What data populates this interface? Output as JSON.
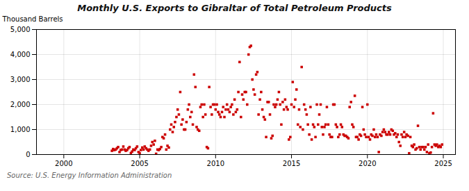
{
  "chart_data": {
    "type": "scatter",
    "title": "Monthly U.S. Exports to Gibraltar of Total Petroleum Products",
    "ylabel": "Thousand Barrels",
    "source": "Source: U.S. Energy Information Administration",
    "color": "#cc0000",
    "marker": "square",
    "grid": true,
    "xlim": [
      1998.2,
      2025.8
    ],
    "xticks": [
      2000,
      2005,
      2010,
      2015,
      2020,
      2025
    ],
    "ylim": [
      0,
      5000
    ],
    "yticks": [
      0,
      {
        "value": 1000,
        "label": "1,000"
      },
      {
        "value": 2000,
        "label": "2,000"
      },
      {
        "value": 3000,
        "label": "3,000"
      },
      {
        "value": 4000,
        "label": "4,000"
      },
      {
        "value": 5000,
        "label": "5,000"
      }
    ],
    "x": [
      2003.17,
      2003.25,
      2003.33,
      2003.42,
      2003.5,
      2003.58,
      2003.67,
      2003.75,
      2003.83,
      2003.92,
      2004.0,
      2004.08,
      2004.17,
      2004.25,
      2004.33,
      2004.42,
      2004.5,
      2004.58,
      2004.67,
      2004.75,
      2004.83,
      2004.92,
      2005.0,
      2005.08,
      2005.17,
      2005.25,
      2005.33,
      2005.42,
      2005.5,
      2005.58,
      2005.67,
      2005.75,
      2005.83,
      2005.92,
      2006.0,
      2006.08,
      2006.17,
      2006.25,
      2006.33,
      2006.42,
      2006.5,
      2006.58,
      2006.67,
      2006.75,
      2006.83,
      2006.92,
      2007.0,
      2007.08,
      2007.17,
      2007.25,
      2007.33,
      2007.42,
      2007.5,
      2007.58,
      2007.67,
      2007.75,
      2007.83,
      2007.92,
      2008.0,
      2008.08,
      2008.17,
      2008.25,
      2008.33,
      2008.42,
      2008.5,
      2008.58,
      2008.67,
      2008.75,
      2008.83,
      2008.92,
      2009.0,
      2009.08,
      2009.17,
      2009.25,
      2009.33,
      2009.42,
      2009.5,
      2009.58,
      2009.67,
      2009.75,
      2009.83,
      2009.92,
      2010.0,
      2010.08,
      2010.17,
      2010.25,
      2010.33,
      2010.42,
      2010.5,
      2010.58,
      2010.67,
      2010.75,
      2010.83,
      2010.92,
      2011.0,
      2011.08,
      2011.17,
      2011.25,
      2011.33,
      2011.42,
      2011.5,
      2011.58,
      2011.67,
      2011.75,
      2011.83,
      2011.92,
      2012.0,
      2012.08,
      2012.17,
      2012.25,
      2012.33,
      2012.42,
      2012.5,
      2012.58,
      2012.67,
      2012.75,
      2012.83,
      2012.92,
      2013.0,
      2013.08,
      2013.17,
      2013.25,
      2013.33,
      2013.42,
      2013.5,
      2013.58,
      2013.67,
      2013.75,
      2013.83,
      2013.92,
      2014.0,
      2014.08,
      2014.17,
      2014.25,
      2014.33,
      2014.42,
      2014.5,
      2014.58,
      2014.67,
      2014.75,
      2014.83,
      2014.92,
      2015.0,
      2015.08,
      2015.17,
      2015.25,
      2015.33,
      2015.42,
      2015.5,
      2015.58,
      2015.67,
      2015.75,
      2015.83,
      2015.92,
      2016.0,
      2016.08,
      2016.17,
      2016.25,
      2016.33,
      2016.42,
      2016.5,
      2016.58,
      2016.67,
      2016.75,
      2016.83,
      2016.92,
      2017.0,
      2017.08,
      2017.17,
      2017.25,
      2017.33,
      2017.42,
      2017.5,
      2017.58,
      2017.67,
      2017.75,
      2017.83,
      2017.92,
      2018.0,
      2018.08,
      2018.17,
      2018.25,
      2018.33,
      2018.42,
      2018.5,
      2018.58,
      2018.67,
      2018.75,
      2018.83,
      2018.92,
      2019.0,
      2019.08,
      2019.17,
      2019.25,
      2019.33,
      2019.42,
      2019.5,
      2019.58,
      2019.67,
      2019.75,
      2019.83,
      2019.92,
      2020.0,
      2020.08,
      2020.17,
      2020.25,
      2020.33,
      2020.42,
      2020.5,
      2020.58,
      2020.67,
      2020.75,
      2020.83,
      2020.92,
      2021.0,
      2021.08,
      2021.17,
      2021.25,
      2021.33,
      2021.42,
      2021.5,
      2021.58,
      2021.67,
      2021.75,
      2021.83,
      2021.92,
      2022.0,
      2022.08,
      2022.17,
      2022.25,
      2022.33,
      2022.42,
      2022.5,
      2022.58,
      2022.67,
      2022.75,
      2022.83,
      2022.92,
      2023.0,
      2023.08,
      2023.17,
      2023.25,
      2023.33,
      2023.42,
      2023.5,
      2023.58,
      2023.67,
      2023.75,
      2023.83,
      2023.92,
      2024.0,
      2024.08,
      2024.17,
      2024.25,
      2024.33,
      2024.42,
      2024.5,
      2024.58,
      2024.67,
      2024.75,
      2024.83,
      2024.92
    ],
    "values": [
      150,
      220,
      180,
      200,
      250,
      300,
      100,
      180,
      200,
      320,
      200,
      150,
      180,
      250,
      300,
      60,
      120,
      200,
      180,
      250,
      320,
      100,
      50,
      180,
      280,
      200,
      320,
      250,
      200,
      150,
      200,
      350,
      500,
      400,
      550,
      30,
      200,
      180,
      220,
      300,
      700,
      650,
      800,
      200,
      350,
      280,
      1000,
      1200,
      900,
      1100,
      1300,
      1500,
      1800,
      1600,
      2500,
      1200,
      1400,
      1000,
      1000,
      1300,
      1800,
      2000,
      1500,
      1700,
      1200,
      3200,
      2700,
      1100,
      1000,
      950,
      1900,
      2000,
      1500,
      2000,
      1600,
      300,
      250,
      2700,
      1900,
      1600,
      2000,
      2000,
      1800,
      2000,
      1700,
      1600,
      1500,
      1700,
      1900,
      1500,
      1800,
      2000,
      1800,
      1700,
      1900,
      2000,
      1600,
      2200,
      1700,
      1800,
      2500,
      3700,
      1500,
      2400,
      2200,
      2500,
      2500,
      2000,
      4000,
      4300,
      4350,
      3000,
      2600,
      2400,
      3200,
      3300,
      1600,
      2200,
      2500,
      1800,
      1500,
      1400,
      700,
      2100,
      2100,
      1600,
      650,
      750,
      2000,
      1900,
      2000,
      2200,
      2500,
      2000,
      1200,
      2100,
      1800,
      2200,
      1900,
      1800,
      600,
      700,
      2000,
      2900,
      1900,
      2200,
      2600,
      1200,
      1800,
      1100,
      3500,
      1000,
      2000,
      1800,
      1600,
      1200,
      800,
      1900,
      600,
      1200,
      1100,
      700,
      2000,
      1200,
      1600,
      2000,
      1100,
      800,
      1100,
      1200,
      1900,
      1200,
      800,
      700,
      700,
      2000,
      2000,
      1200,
      1100,
      700,
      800,
      1200,
      1100,
      800,
      750,
      750,
      700,
      650,
      1900,
      2100,
      1200,
      1100,
      2350,
      700,
      700,
      600,
      800,
      750,
      1900,
      1000,
      800,
      700,
      2000,
      700,
      600,
      800,
      750,
      1000,
      700,
      800,
      700,
      100,
      800,
      750,
      900,
      1000,
      900,
      800,
      800,
      900,
      800,
      1000,
      950,
      800,
      850,
      700,
      800,
      500,
      350,
      800,
      700,
      900,
      700,
      800,
      750,
      50,
      700,
      350,
      300,
      400,
      200,
      250,
      1150,
      300,
      200,
      300,
      300,
      200,
      300,
      100,
      400,
      50,
      80,
      300,
      1650,
      400,
      350,
      400,
      300,
      350,
      300,
      400
    ]
  }
}
